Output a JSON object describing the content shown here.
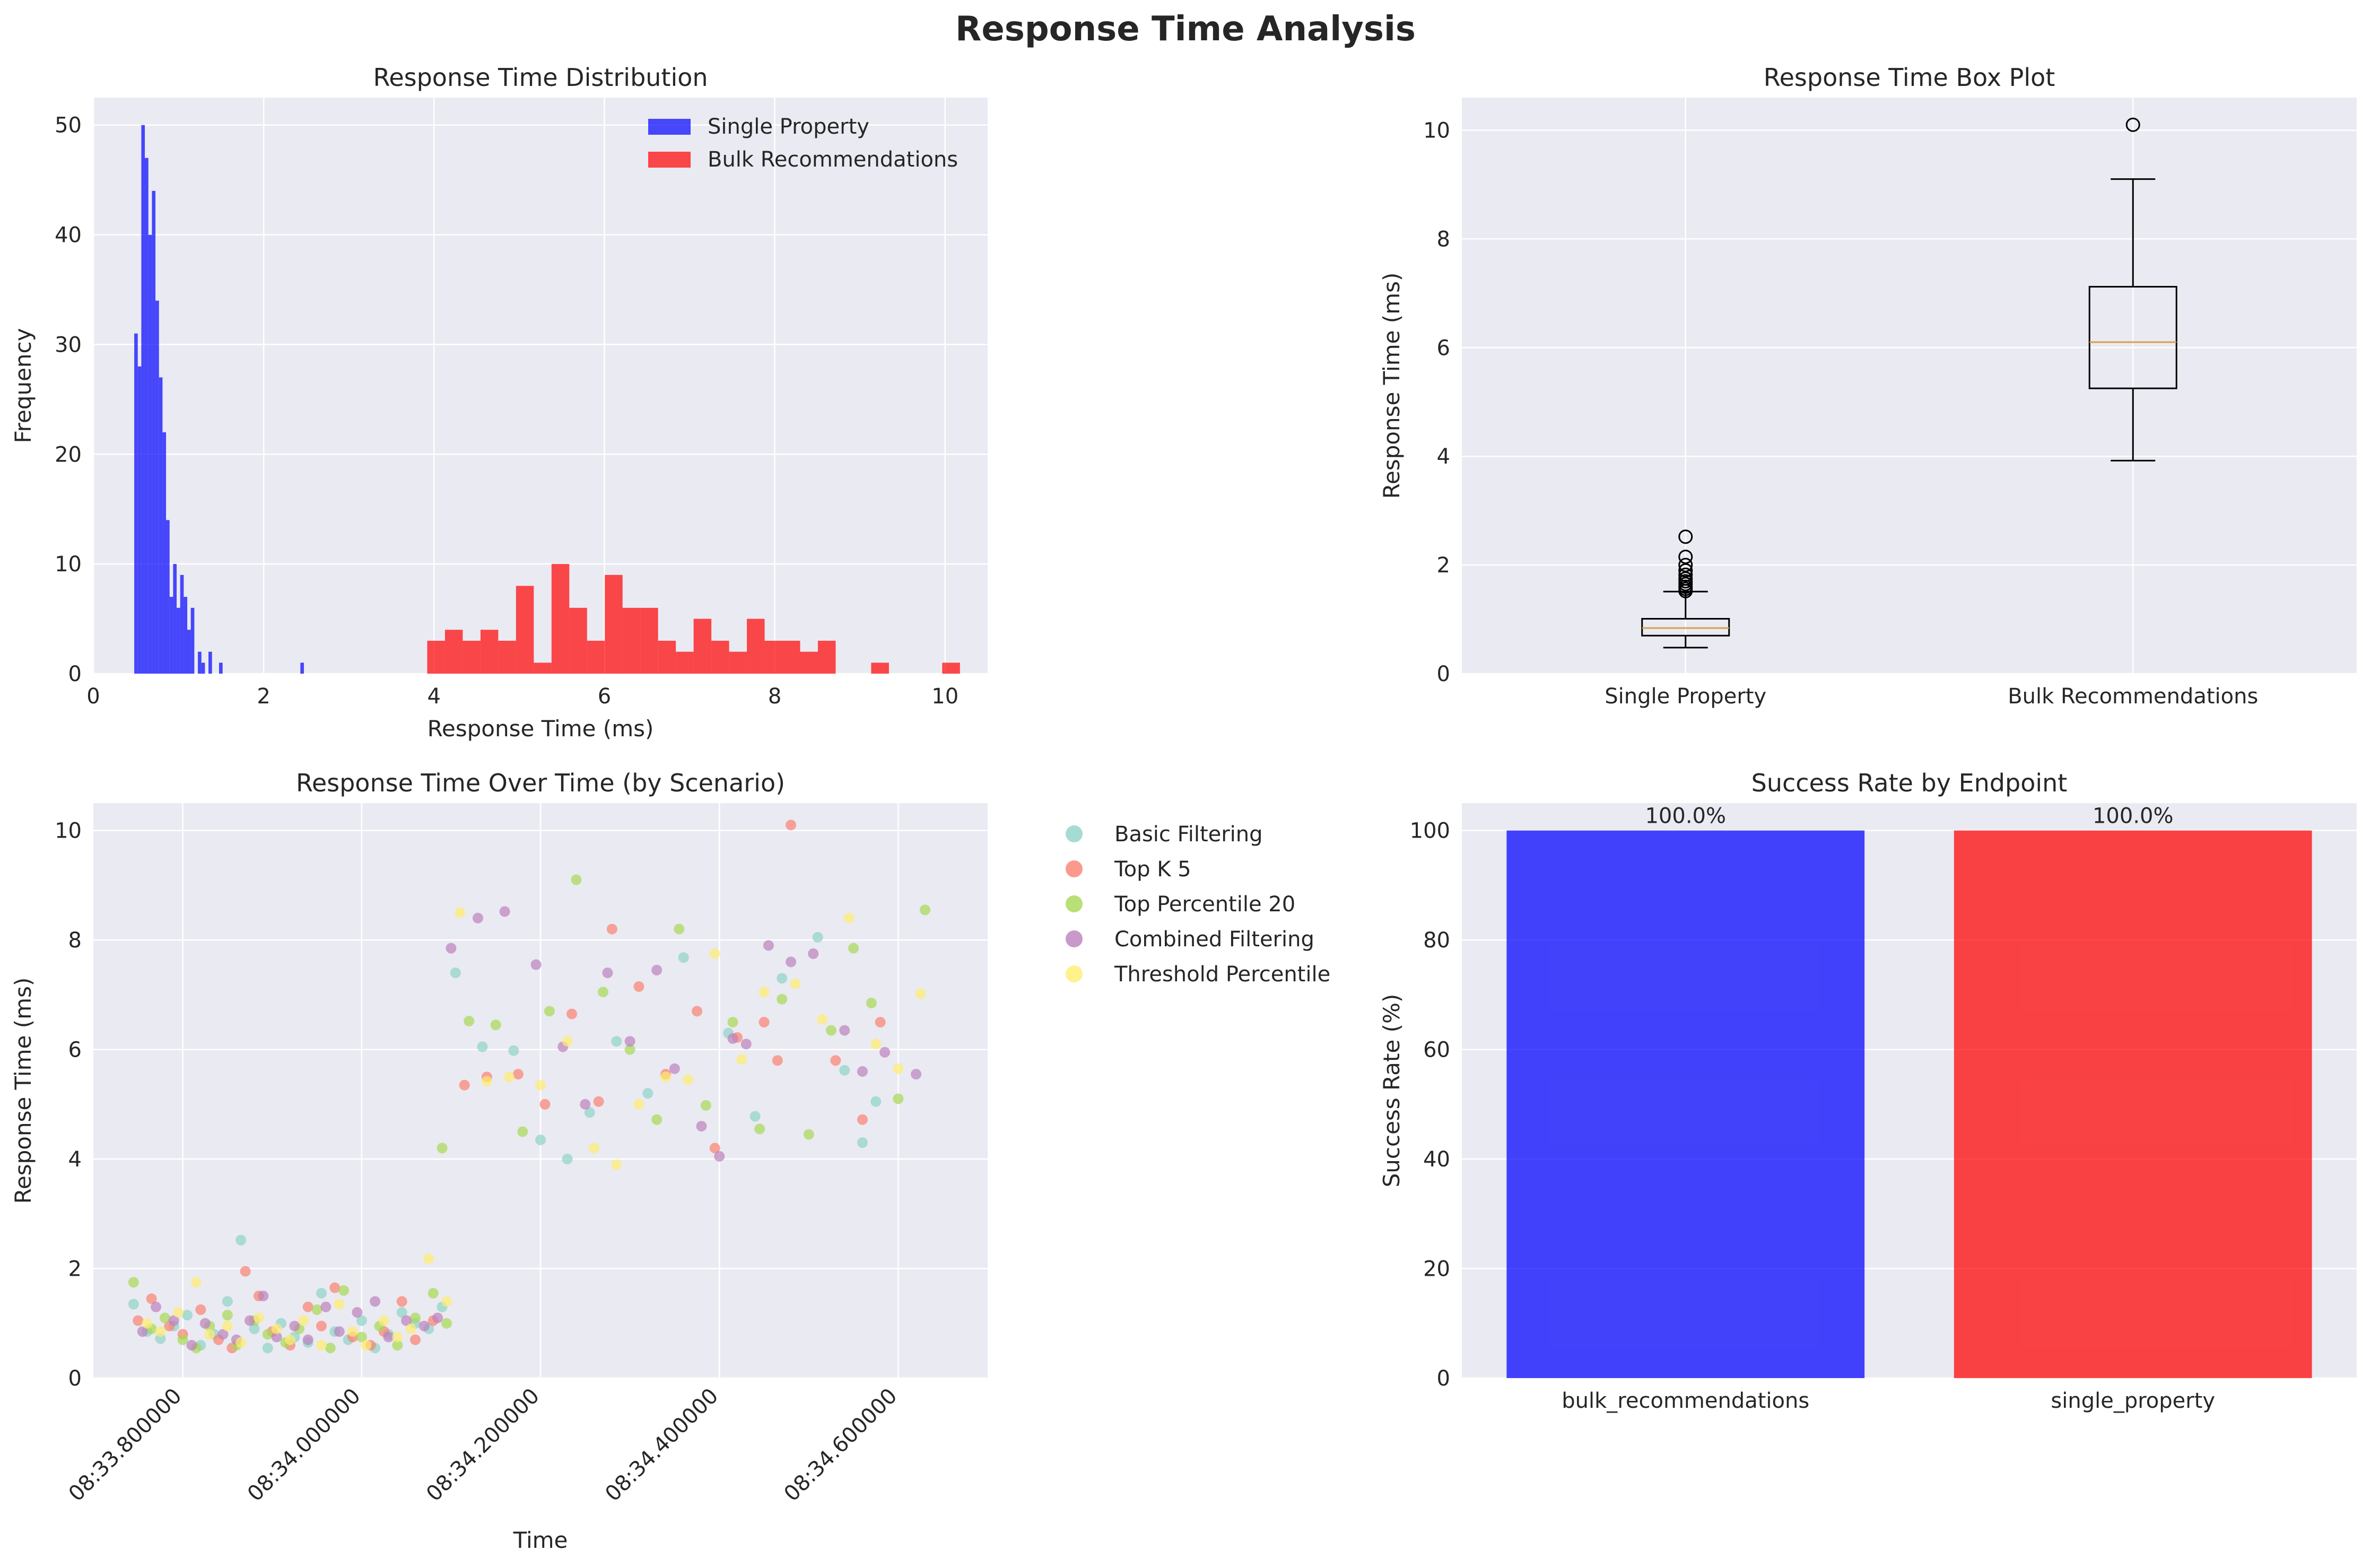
{
  "figure": {
    "title": "Response Time Analysis"
  },
  "colors": {
    "panel_bg": "#EAEAF2",
    "grid": "#ffffff",
    "single_property": "#0000FF",
    "bulk_recommendations": "#FF0000",
    "median_line": "#D6A04A",
    "scenario_colors": [
      "#8DD3C7",
      "#FB8072",
      "#A6D854",
      "#BC80BD",
      "#FFED6F"
    ]
  },
  "chart_data": [
    {
      "id": "hist",
      "type": "bar",
      "subtype": "histogram",
      "title": "Response Time Distribution",
      "xlabel": "Response Time (ms)",
      "ylabel": "Frequency",
      "xlim": [
        0,
        10.5
      ],
      "ylim": [
        0,
        52.5
      ],
      "xticks": [
        0,
        2,
        4,
        6,
        8,
        10
      ],
      "yticks": [
        0,
        10,
        20,
        30,
        40,
        50
      ],
      "grid": true,
      "legend": "top-right",
      "series": [
        {
          "name": "Single Property",
          "bin_start": 0.48,
          "bin_width": 0.0415,
          "counts": [
            31,
            28,
            50,
            47,
            40,
            44,
            34,
            27,
            22,
            14,
            7,
            10,
            6,
            9,
            7,
            4,
            6,
            0,
            2,
            1,
            0,
            2,
            0,
            0,
            1,
            0,
            0,
            0,
            0,
            0,
            0,
            0,
            0,
            0,
            0,
            0,
            0,
            0,
            0,
            0,
            0,
            0,
            0,
            0,
            0,
            0,
            0,
            1
          ]
        },
        {
          "name": "Bulk Recommendations",
          "bin_start": 3.92,
          "bin_width": 0.2085,
          "counts": [
            3,
            4,
            3,
            4,
            3,
            8,
            1,
            10,
            6,
            3,
            9,
            6,
            6,
            3,
            2,
            5,
            3,
            2,
            5,
            3,
            3,
            2,
            3,
            0,
            0,
            1,
            0,
            0,
            0,
            1
          ]
        }
      ]
    },
    {
      "id": "box",
      "type": "box",
      "title": "Response Time Box Plot",
      "ylabel": "Response Time (ms)",
      "ylim": [
        0,
        10.6
      ],
      "yticks": [
        0,
        2,
        4,
        6,
        8,
        10
      ],
      "grid": true,
      "categories": [
        "Single Property",
        "Bulk Recommendations"
      ],
      "boxes": [
        {
          "whisker_low": 0.48,
          "q1": 0.7,
          "median": 0.84,
          "q3": 1.01,
          "whisker_high": 1.51,
          "outliers": [
            1.52,
            1.56,
            1.6,
            1.65,
            1.7,
            1.75,
            1.82,
            1.9,
            2.0,
            2.15,
            2.52
          ]
        },
        {
          "whisker_low": 3.92,
          "q1": 5.25,
          "median": 6.1,
          "q3": 7.12,
          "whisker_high": 9.1,
          "outliers": [
            10.1
          ]
        }
      ]
    },
    {
      "id": "scatter",
      "type": "scatter",
      "title": "Response Time Over Time (by Scenario)",
      "xlabel": "Time",
      "ylabel": "Response Time (ms)",
      "ylim": [
        0,
        10.5
      ],
      "yticks": [
        0,
        2,
        4,
        6,
        8,
        10
      ],
      "xlim": [
        33.7,
        34.7
      ],
      "xticks": [
        33.8,
        34.0,
        34.2,
        34.4,
        34.6
      ],
      "xtick_labels": [
        "08:33.800000",
        "08:34.000000",
        "08:34.200000",
        "08:34.400000",
        "08:34.600000"
      ],
      "grid": true,
      "legend": "outside-right",
      "x_unit": "seconds past 08:00",
      "series": [
        {
          "name": "Basic Filtering",
          "points": [
            [
              33.745,
              1.35
            ],
            [
              33.76,
              0.85
            ],
            [
              33.775,
              0.72
            ],
            [
              33.79,
              0.95
            ],
            [
              33.805,
              1.15
            ],
            [
              33.82,
              0.6
            ],
            [
              33.835,
              0.8
            ],
            [
              33.85,
              1.4
            ],
            [
              33.865,
              2.52
            ],
            [
              33.88,
              0.9
            ],
            [
              33.895,
              0.55
            ],
            [
              33.91,
              1.0
            ],
            [
              33.925,
              0.75
            ],
            [
              33.94,
              0.65
            ],
            [
              33.955,
              1.55
            ],
            [
              33.97,
              0.85
            ],
            [
              33.985,
              0.7
            ],
            [
              34.0,
              1.05
            ],
            [
              34.015,
              0.55
            ],
            [
              34.03,
              0.8
            ],
            [
              34.045,
              1.2
            ],
            [
              34.06,
              1.0
            ],
            [
              34.075,
              0.9
            ],
            [
              34.09,
              1.3
            ],
            [
              34.105,
              7.4
            ],
            [
              34.135,
              6.05
            ],
            [
              34.17,
              5.98
            ],
            [
              34.2,
              4.35
            ],
            [
              34.23,
              4.0
            ],
            [
              34.255,
              4.85
            ],
            [
              34.285,
              6.15
            ],
            [
              34.32,
              5.2
            ],
            [
              34.36,
              7.68
            ],
            [
              34.41,
              6.3
            ],
            [
              34.44,
              4.78
            ],
            [
              34.47,
              7.3
            ],
            [
              34.51,
              8.05
            ],
            [
              34.54,
              5.62
            ],
            [
              34.56,
              4.3
            ],
            [
              34.575,
              5.05
            ]
          ]
        },
        {
          "name": "Top K 5",
          "points": [
            [
              33.75,
              1.05
            ],
            [
              33.765,
              1.45
            ],
            [
              33.785,
              0.95
            ],
            [
              33.8,
              0.8
            ],
            [
              33.82,
              1.25
            ],
            [
              33.84,
              0.7
            ],
            [
              33.855,
              0.55
            ],
            [
              33.87,
              1.95
            ],
            [
              33.885,
              1.5
            ],
            [
              33.9,
              0.85
            ],
            [
              33.92,
              0.6
            ],
            [
              33.94,
              1.3
            ],
            [
              33.955,
              0.95
            ],
            [
              33.97,
              1.65
            ],
            [
              33.99,
              0.75
            ],
            [
              34.01,
              0.6
            ],
            [
              34.025,
              0.85
            ],
            [
              34.045,
              1.4
            ],
            [
              34.06,
              0.7
            ],
            [
              34.08,
              1.05
            ],
            [
              34.115,
              5.35
            ],
            [
              34.14,
              5.5
            ],
            [
              34.175,
              5.55
            ],
            [
              34.205,
              5.0
            ],
            [
              34.235,
              6.65
            ],
            [
              34.265,
              5.05
            ],
            [
              34.28,
              8.2
            ],
            [
              34.31,
              7.15
            ],
            [
              34.34,
              5.55
            ],
            [
              34.375,
              6.7
            ],
            [
              34.395,
              4.2
            ],
            [
              34.42,
              6.22
            ],
            [
              34.45,
              6.5
            ],
            [
              34.465,
              5.8
            ],
            [
              34.48,
              10.1
            ],
            [
              34.53,
              5.8
            ],
            [
              34.56,
              4.72
            ],
            [
              34.58,
              6.5
            ]
          ]
        },
        {
          "name": "Top Percentile 20",
          "points": [
            [
              33.745,
              1.75
            ],
            [
              33.765,
              0.9
            ],
            [
              33.78,
              1.1
            ],
            [
              33.8,
              0.7
            ],
            [
              33.815,
              0.55
            ],
            [
              33.83,
              0.95
            ],
            [
              33.85,
              1.15
            ],
            [
              33.86,
              0.6
            ],
            [
              33.88,
              1.05
            ],
            [
              33.895,
              0.8
            ],
            [
              33.915,
              0.65
            ],
            [
              33.93,
              0.9
            ],
            [
              33.95,
              1.25
            ],
            [
              33.965,
              0.55
            ],
            [
              33.98,
              1.6
            ],
            [
              34.0,
              0.75
            ],
            [
              34.02,
              0.95
            ],
            [
              34.04,
              0.6
            ],
            [
              34.06,
              1.1
            ],
            [
              34.08,
              1.55
            ],
            [
              34.095,
              1.0
            ],
            [
              34.09,
              4.2
            ],
            [
              34.12,
              6.52
            ],
            [
              34.15,
              6.45
            ],
            [
              34.18,
              4.5
            ],
            [
              34.21,
              6.7
            ],
            [
              34.24,
              9.1
            ],
            [
              34.27,
              7.05
            ],
            [
              34.3,
              6.0
            ],
            [
              34.33,
              4.72
            ],
            [
              34.355,
              8.2
            ],
            [
              34.385,
              4.98
            ],
            [
              34.415,
              6.5
            ],
            [
              34.445,
              4.55
            ],
            [
              34.47,
              6.92
            ],
            [
              34.5,
              4.45
            ],
            [
              34.525,
              6.35
            ],
            [
              34.55,
              7.85
            ],
            [
              34.57,
              6.85
            ],
            [
              34.6,
              5.1
            ],
            [
              34.63,
              8.55
            ]
          ]
        },
        {
          "name": "Combined Filtering",
          "points": [
            [
              33.755,
              0.85
            ],
            [
              33.77,
              1.3
            ],
            [
              33.79,
              1.05
            ],
            [
              33.81,
              0.6
            ],
            [
              33.825,
              1.0
            ],
            [
              33.845,
              0.8
            ],
            [
              33.86,
              0.7
            ],
            [
              33.875,
              1.05
            ],
            [
              33.89,
              1.5
            ],
            [
              33.905,
              0.75
            ],
            [
              33.925,
              0.95
            ],
            [
              33.94,
              0.7
            ],
            [
              33.96,
              1.3
            ],
            [
              33.975,
              0.85
            ],
            [
              33.995,
              1.2
            ],
            [
              34.015,
              1.4
            ],
            [
              34.03,
              0.75
            ],
            [
              34.05,
              1.05
            ],
            [
              34.07,
              0.95
            ],
            [
              34.085,
              1.1
            ],
            [
              34.1,
              7.85
            ],
            [
              34.13,
              8.4
            ],
            [
              34.16,
              8.52
            ],
            [
              34.195,
              7.55
            ],
            [
              34.225,
              6.05
            ],
            [
              34.25,
              5.0
            ],
            [
              34.275,
              7.4
            ],
            [
              34.3,
              6.15
            ],
            [
              34.33,
              7.45
            ],
            [
              34.35,
              5.65
            ],
            [
              34.38,
              4.6
            ],
            [
              34.4,
              4.05
            ],
            [
              34.415,
              6.2
            ],
            [
              34.43,
              6.1
            ],
            [
              34.455,
              7.9
            ],
            [
              34.48,
              7.6
            ],
            [
              34.505,
              7.75
            ],
            [
              34.54,
              6.35
            ],
            [
              34.56,
              5.6
            ],
            [
              34.585,
              5.95
            ],
            [
              34.62,
              5.55
            ]
          ]
        },
        {
          "name": "Threshold Percentile",
          "points": [
            [
              33.76,
              1.0
            ],
            [
              33.775,
              0.85
            ],
            [
              33.795,
              1.2
            ],
            [
              33.815,
              1.75
            ],
            [
              33.83,
              0.8
            ],
            [
              33.85,
              0.95
            ],
            [
              33.865,
              0.65
            ],
            [
              33.885,
              1.1
            ],
            [
              33.905,
              0.9
            ],
            [
              33.92,
              0.7
            ],
            [
              33.935,
              1.05
            ],
            [
              33.955,
              0.6
            ],
            [
              33.975,
              1.35
            ],
            [
              33.99,
              0.85
            ],
            [
              34.005,
              0.6
            ],
            [
              34.025,
              1.05
            ],
            [
              34.04,
              0.75
            ],
            [
              34.055,
              0.9
            ],
            [
              34.075,
              2.18
            ],
            [
              34.095,
              1.4
            ],
            [
              34.11,
              8.5
            ],
            [
              34.14,
              5.42
            ],
            [
              34.165,
              5.5
            ],
            [
              34.2,
              5.35
            ],
            [
              34.23,
              6.15
            ],
            [
              34.26,
              4.2
            ],
            [
              34.285,
              3.9
            ],
            [
              34.31,
              5.0
            ],
            [
              34.34,
              5.5
            ],
            [
              34.365,
              5.45
            ],
            [
              34.395,
              7.75
            ],
            [
              34.425,
              5.82
            ],
            [
              34.45,
              7.05
            ],
            [
              34.485,
              7.2
            ],
            [
              34.515,
              6.55
            ],
            [
              34.545,
              8.4
            ],
            [
              34.575,
              6.1
            ],
            [
              34.6,
              5.65
            ],
            [
              34.625,
              7.02
            ]
          ]
        }
      ]
    },
    {
      "id": "success",
      "type": "bar",
      "title": "Success Rate by Endpoint",
      "ylabel": "Success Rate (%)",
      "ylim": [
        0,
        105
      ],
      "yticks": [
        0,
        20,
        40,
        60,
        80,
        100
      ],
      "grid": true,
      "categories": [
        "bulk_recommendations",
        "single_property"
      ],
      "values": [
        100.0,
        100.0
      ],
      "value_labels": [
        "100.0%",
        "100.0%"
      ]
    }
  ]
}
